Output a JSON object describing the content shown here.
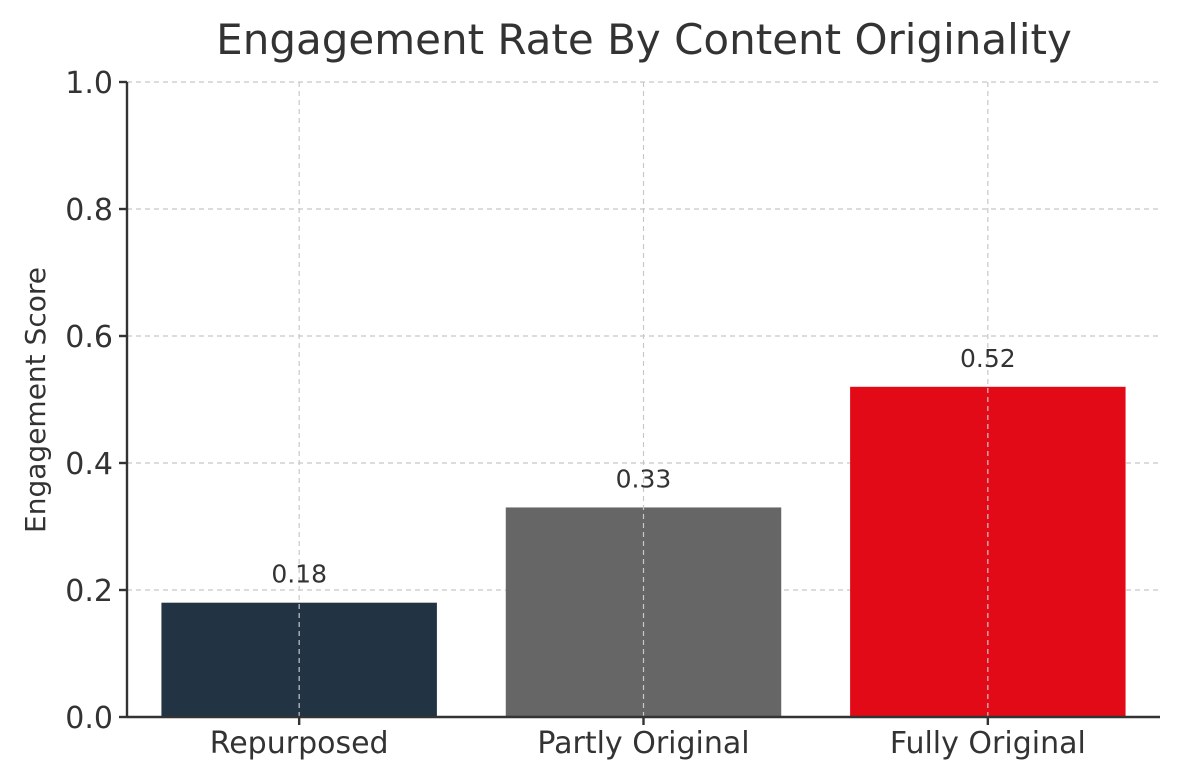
{
  "chart_data": {
    "type": "bar",
    "title": "Engagement Rate By Content Originality",
    "xlabel": "",
    "ylabel": "Engagement Score",
    "categories": [
      "Repurposed",
      "Partly Original",
      "Fully Original"
    ],
    "values": [
      0.18,
      0.33,
      0.52
    ],
    "value_labels": [
      "0.18",
      "0.33",
      "0.52"
    ],
    "colors": [
      "#223344",
      "#666666",
      "#e30a17"
    ],
    "ylim": [
      0,
      1.0
    ],
    "yticks": [
      "0.0",
      "0.2",
      "0.4",
      "0.6",
      "0.8",
      "1.0"
    ],
    "grid": true,
    "legend": "none"
  }
}
